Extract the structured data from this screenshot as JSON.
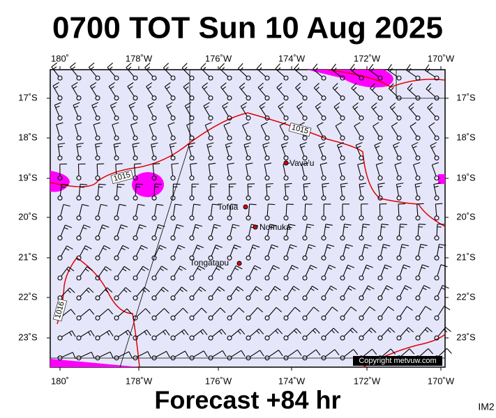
{
  "header": {
    "title": "0700 TOT Sun 10 Aug 2025"
  },
  "axes": {
    "lon_labels": [
      "180˚",
      "178˚W",
      "176˚W",
      "174˚W",
      "172˚W",
      "170˚W"
    ],
    "lat_labels": [
      "17˚S",
      "18˚S",
      "19˚S",
      "20˚S",
      "21˚S",
      "22˚S",
      "23˚S"
    ]
  },
  "places": [
    "Vava'u",
    "Tofua",
    "Nomuka",
    "Tongatapu"
  ],
  "isobar_labels": [
    "1015",
    "1015",
    "1016"
  ],
  "copyright": "Copyright metvuw.com",
  "footer": {
    "forecast": "Forecast +84 hr",
    "image_id": "IM2"
  }
}
